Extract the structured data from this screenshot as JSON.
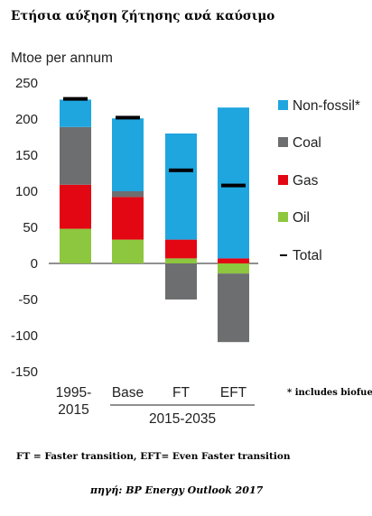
{
  "title": "Ετήσια αύξηση ζήτησης ανά καύσιμο",
  "footnote": "FT = Faster transition, EFT= Even Faster transition",
  "source": "πηγή: BP Energy Outlook 2017",
  "chart_data": {
    "type": "bar",
    "stacked": true,
    "ylabel": "Mtoe per annum",
    "ylim": [
      -150,
      250
    ],
    "yticks": [
      250,
      200,
      150,
      100,
      50,
      0,
      -50,
      -100,
      -150
    ],
    "categories": [
      "1995-2015",
      "Base",
      "FT",
      "EFT"
    ],
    "category_lines": [
      [
        "1995-",
        "2015"
      ],
      [
        "Base"
      ],
      [
        "FT"
      ],
      [
        "EFT"
      ]
    ],
    "group_label": "2015-2035",
    "grid": false,
    "legend_position": "right",
    "note": "* includes biofuels",
    "series": [
      {
        "name": "Oil",
        "color": "#8dc63f",
        "values": [
          48,
          33,
          7,
          -14
        ]
      },
      {
        "name": "Gas",
        "color": "#e30613",
        "values": [
          61,
          59,
          26,
          7
        ]
      },
      {
        "name": "Coal",
        "color": "#6d6e70",
        "values": [
          80,
          8,
          -50,
          -95
        ]
      },
      {
        "name": "Non-fossil*",
        "color": "#1fa6df",
        "values": [
          38,
          101,
          147,
          209
        ]
      }
    ],
    "legend": [
      {
        "name": "Non-fossil*",
        "color": "#1fa6df"
      },
      {
        "name": "Coal",
        "color": "#6d6e70"
      },
      {
        "name": "Gas",
        "color": "#e30613"
      },
      {
        "name": "Oil",
        "color": "#8dc63f"
      },
      {
        "name": "Total",
        "color": "#000000"
      }
    ],
    "totals": [
      228,
      202,
      129,
      108
    ]
  }
}
